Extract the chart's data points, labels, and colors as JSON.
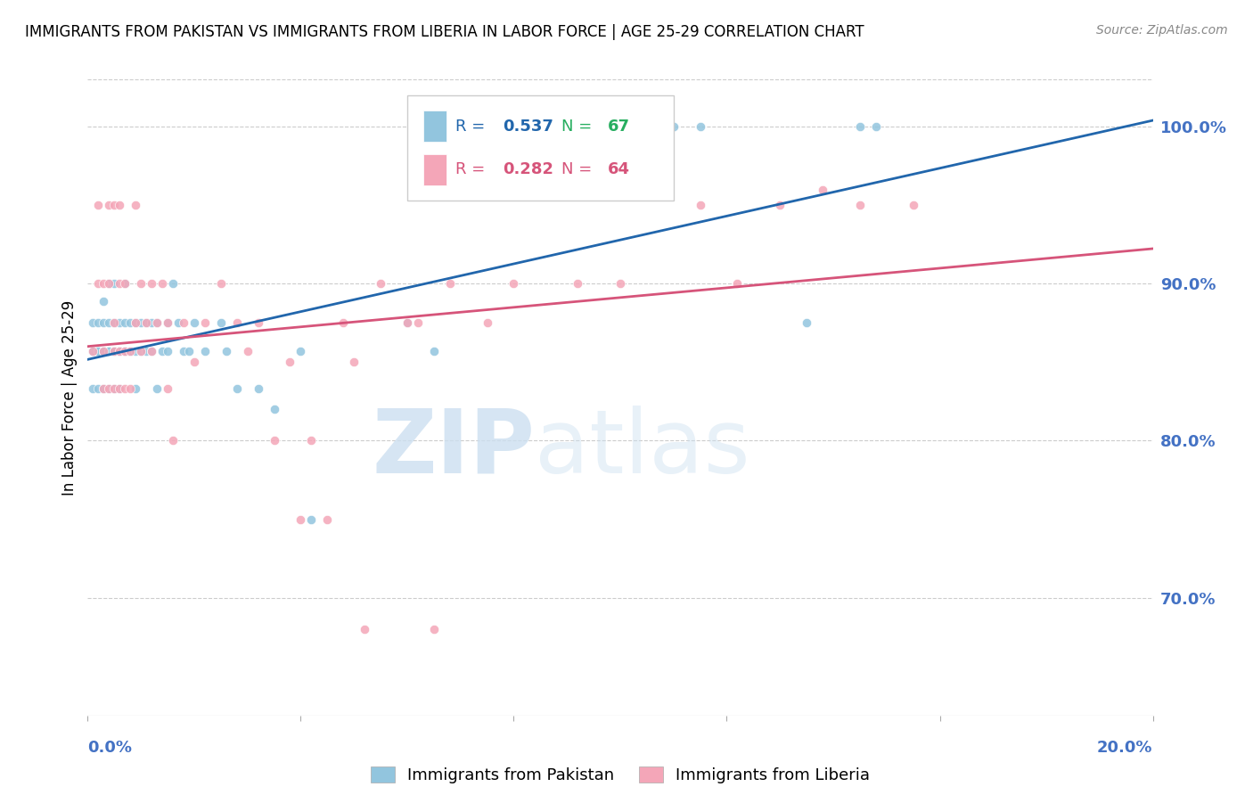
{
  "title": "IMMIGRANTS FROM PAKISTAN VS IMMIGRANTS FROM LIBERIA IN LABOR FORCE | AGE 25-29 CORRELATION CHART",
  "source": "Source: ZipAtlas.com",
  "ylabel": "In Labor Force | Age 25-29",
  "ytick_labels": [
    "100.0%",
    "90.0%",
    "80.0%",
    "70.0%"
  ],
  "ytick_values": [
    1.0,
    0.9,
    0.8,
    0.7
  ],
  "xlim": [
    0.0,
    0.2
  ],
  "ylim": [
    0.625,
    1.03
  ],
  "pakistan_color": "#92c5de",
  "liberia_color": "#f4a6b8",
  "pakistan_line_color": "#2166ac",
  "liberia_line_color": "#d6547a",
  "pakistan_R": 0.537,
  "pakistan_N": 67,
  "liberia_R": 0.282,
  "liberia_N": 64,
  "legend_label_pakistan": "Immigrants from Pakistan",
  "legend_label_liberia": "Immigrants from Liberia",
  "pakistan_x": [
    0.001,
    0.001,
    0.001,
    0.002,
    0.002,
    0.002,
    0.002,
    0.003,
    0.003,
    0.003,
    0.003,
    0.003,
    0.004,
    0.004,
    0.004,
    0.004,
    0.004,
    0.005,
    0.005,
    0.005,
    0.005,
    0.005,
    0.006,
    0.006,
    0.006,
    0.006,
    0.007,
    0.007,
    0.007,
    0.007,
    0.008,
    0.008,
    0.008,
    0.009,
    0.009,
    0.009,
    0.01,
    0.01,
    0.011,
    0.011,
    0.012,
    0.012,
    0.013,
    0.013,
    0.014,
    0.015,
    0.015,
    0.016,
    0.017,
    0.018,
    0.019,
    0.02,
    0.022,
    0.025,
    0.026,
    0.028,
    0.032,
    0.035,
    0.04,
    0.042,
    0.06,
    0.065,
    0.11,
    0.115,
    0.135,
    0.145,
    0.148
  ],
  "pakistan_y": [
    0.857,
    0.875,
    0.833,
    0.857,
    0.875,
    0.857,
    0.833,
    0.857,
    0.875,
    0.833,
    0.857,
    0.889,
    0.857,
    0.875,
    0.9,
    0.857,
    0.833,
    0.857,
    0.875,
    0.9,
    0.857,
    0.833,
    0.857,
    0.875,
    0.857,
    0.833,
    0.875,
    0.857,
    0.9,
    0.857,
    0.857,
    0.875,
    0.857,
    0.857,
    0.875,
    0.833,
    0.875,
    0.857,
    0.875,
    0.857,
    0.875,
    0.857,
    0.875,
    0.833,
    0.857,
    0.875,
    0.857,
    0.9,
    0.875,
    0.857,
    0.857,
    0.875,
    0.857,
    0.875,
    0.857,
    0.833,
    0.833,
    0.82,
    0.857,
    0.75,
    0.875,
    0.857,
    1.0,
    1.0,
    0.875,
    1.0,
    1.0
  ],
  "liberia_x": [
    0.001,
    0.002,
    0.002,
    0.003,
    0.003,
    0.003,
    0.004,
    0.004,
    0.004,
    0.005,
    0.005,
    0.005,
    0.005,
    0.006,
    0.006,
    0.006,
    0.006,
    0.007,
    0.007,
    0.007,
    0.008,
    0.008,
    0.009,
    0.009,
    0.01,
    0.01,
    0.011,
    0.012,
    0.012,
    0.013,
    0.014,
    0.015,
    0.015,
    0.016,
    0.018,
    0.02,
    0.022,
    0.025,
    0.028,
    0.03,
    0.032,
    0.035,
    0.038,
    0.042,
    0.048,
    0.05,
    0.055,
    0.06,
    0.062,
    0.068,
    0.075,
    0.08,
    0.092,
    0.1,
    0.115,
    0.122,
    0.13,
    0.138,
    0.145,
    0.155,
    0.04,
    0.045,
    0.052,
    0.065
  ],
  "liberia_y": [
    0.857,
    0.9,
    0.95,
    0.833,
    0.857,
    0.9,
    0.833,
    0.9,
    0.95,
    0.833,
    0.857,
    0.875,
    0.95,
    0.833,
    0.857,
    0.9,
    0.95,
    0.833,
    0.857,
    0.9,
    0.833,
    0.857,
    0.875,
    0.95,
    0.857,
    0.9,
    0.875,
    0.857,
    0.9,
    0.875,
    0.9,
    0.833,
    0.875,
    0.8,
    0.875,
    0.85,
    0.875,
    0.9,
    0.875,
    0.857,
    0.875,
    0.8,
    0.85,
    0.8,
    0.875,
    0.85,
    0.9,
    0.875,
    0.875,
    0.9,
    0.875,
    0.9,
    0.9,
    0.9,
    0.95,
    0.9,
    0.95,
    0.96,
    0.95,
    0.95,
    0.75,
    0.75,
    0.68,
    0.68
  ]
}
